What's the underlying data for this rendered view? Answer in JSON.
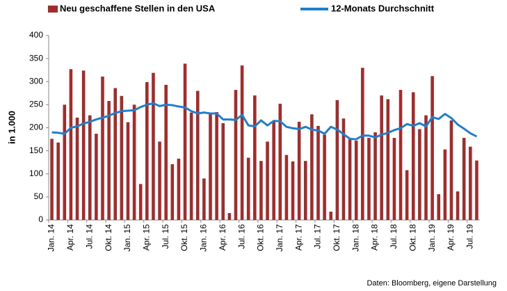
{
  "chart_data": {
    "type": "bar-line",
    "y_label": "in 1.000",
    "source": "Daten: Bloomberg, eigene Darstellung",
    "categories": [
      "Jan. 14",
      null,
      null,
      "Apr. 14",
      null,
      null,
      "Jul. 14",
      null,
      null,
      "Okt. 14",
      null,
      null,
      "Jan. 15",
      null,
      null,
      "Apr. 15",
      null,
      null,
      "Jul. 15",
      null,
      null,
      "Okt. 15",
      null,
      null,
      "Jan. 16",
      null,
      null,
      "Apr. 16",
      null,
      null,
      "Jul. 16",
      null,
      null,
      "Okt. 16",
      null,
      null,
      "Jan. 17",
      null,
      null,
      "Apr. 17",
      null,
      null,
      "Jul. 17",
      null,
      null,
      "Okt. 17",
      null,
      null,
      "Jan. 18",
      null,
      null,
      "Apr. 18",
      null,
      null,
      "Jul. 18",
      null,
      null,
      "Okt. 18",
      null,
      null,
      "Jan. 19",
      null,
      null,
      "Apr. 19",
      null,
      null,
      "Jul. 19",
      null
    ],
    "series": [
      {
        "name": "Neu geschaffene Stellen in den USA",
        "color": "#a52a2a",
        "kind": "bar",
        "values": [
          176,
          168,
          250,
          327,
          222,
          324,
          227,
          187,
          311,
          258,
          286,
          269,
          212,
          250,
          78,
          299,
          319,
          170,
          293,
          121,
          133,
          339,
          233,
          280,
          90,
          232,
          234,
          210,
          15,
          282,
          335,
          135,
          270,
          128,
          170,
          215,
          252,
          141,
          127,
          213,
          128,
          229,
          204,
          185,
          18,
          260,
          220,
          175,
          172,
          330,
          178,
          190,
          270,
          262,
          178,
          282,
          108,
          277,
          197,
          227,
          312,
          56,
          153,
          216,
          62,
          178,
          159,
          129
        ]
      },
      {
        "name": "12-Monats Durchschnitt",
        "color": "#1f7fcf",
        "kind": "line",
        "values": [
          190,
          189,
          187,
          200,
          203,
          209,
          213,
          218,
          222,
          226,
          232,
          236,
          237,
          238,
          245,
          250,
          253,
          247,
          250,
          249,
          246,
          244,
          236,
          231,
          233,
          231,
          231,
          218,
          218,
          217,
          228,
          205,
          203,
          216,
          205,
          215,
          214,
          202,
          199,
          197,
          202,
          196,
          194,
          187,
          202,
          196,
          186,
          176,
          175,
          183,
          183,
          179,
          185,
          189,
          195,
          199,
          208,
          204,
          210,
          203,
          223,
          219,
          230,
          221,
          207,
          198,
          188,
          181
        ]
      }
    ],
    "ylim": [
      0,
      400
    ],
    "yticks": [
      0,
      50,
      100,
      150,
      200,
      250,
      300,
      350,
      400
    ]
  }
}
